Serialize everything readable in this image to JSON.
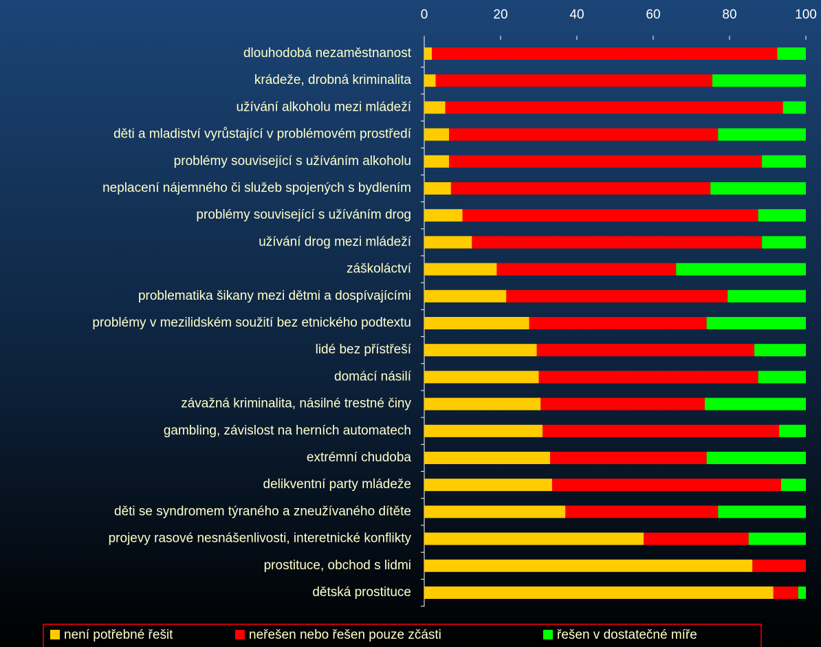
{
  "chart_data": {
    "type": "stacked_barh",
    "categories": [
      "dlouhodobá nezaměstnanost",
      "krádeže, drobná kriminalita",
      "užívání alkoholu mezi mládeží",
      "děti a mladiství vyrůstající v problémovém prostředí",
      "problémy související s užíváním alkoholu",
      "neplacení nájemného či služeb spojených s bydlením",
      "problémy související s užíváním drog",
      "užívání drog mezi mládeží",
      "záškoláctví",
      "problematika šikany mezi dětmi a dospívajícími",
      "problémy v mezilidském soužití bez etnického podtextu",
      "lidé bez přístřeší",
      "domácí násilí",
      "závažná kriminalita, násilné trestné činy",
      "gambling, závislost na herních automatech",
      "extrémní chudoba",
      "delikventní party mládeže",
      "děti se syndromem týraného a zneužívaného dítěte",
      "projevy rasové nesnášenlivosti, interetnické konflikty",
      "prostituce, obchod s lidmi",
      "dětská prostituce"
    ],
    "series": [
      {
        "name": "není potřebné řešit",
        "color": "#ffcc00",
        "values": [
          2,
          3,
          5.5,
          6.5,
          6.5,
          7,
          10,
          12.5,
          19,
          21.5,
          27.5,
          29.5,
          30,
          30.5,
          31,
          33,
          33.5,
          37,
          57.5,
          86,
          91.5
        ]
      },
      {
        "name": "neřešen nebo řešen pouze zčásti",
        "color": "#ff0000",
        "values": [
          90.5,
          72.5,
          88.5,
          70.5,
          82,
          68,
          77.5,
          76,
          47,
          58,
          46.5,
          57,
          57.5,
          43,
          62,
          41,
          60,
          40,
          27.5,
          14,
          6.5
        ]
      },
      {
        "name": "řešen v dostatečné míře",
        "color": "#00ff00",
        "values": [
          7.5,
          24.5,
          6,
          23,
          11.5,
          25,
          12.5,
          11.5,
          34,
          20.5,
          26,
          13.5,
          12.5,
          26.5,
          7,
          26,
          6.5,
          23,
          15,
          0,
          2
        ]
      }
    ],
    "xlim": [
      0,
      100
    ],
    "xticks": [
      0,
      20,
      40,
      60,
      80,
      100
    ],
    "legend": "bottom"
  }
}
